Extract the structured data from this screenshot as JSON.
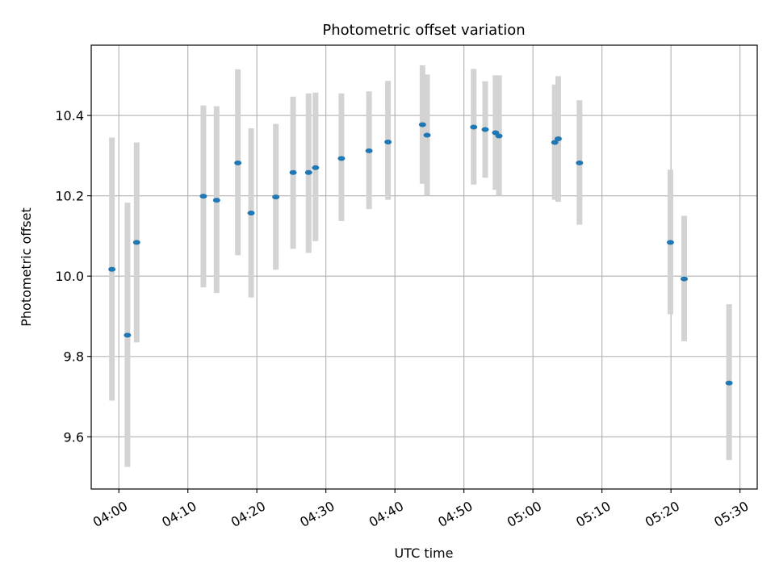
{
  "chart_data": {
    "type": "scatter",
    "title": "Photometric offset variation",
    "xlabel": "UTC time",
    "ylabel": "Photometric offset",
    "grid": true,
    "colors": {
      "point": "#1f77b4",
      "errorbar": "#d3d3d3",
      "grid": "#b0b0b0"
    },
    "xlim": [
      "03:56:00",
      "05:32:30"
    ],
    "ylim": [
      9.47,
      10.575
    ],
    "x_ticks": [
      "04:00",
      "04:10",
      "04:20",
      "04:30",
      "04:40",
      "04:50",
      "05:00",
      "05:10",
      "05:20",
      "05:30"
    ],
    "y_ticks": [
      "9.6",
      "9.8",
      "10.0",
      "10.2",
      "10.4"
    ],
    "points": [
      {
        "x": "03:59:00",
        "y": 10.017,
        "lo": 9.69,
        "hi": 10.345
      },
      {
        "x": "04:01:15",
        "y": 9.853,
        "lo": 9.525,
        "hi": 10.183
      },
      {
        "x": "04:02:35",
        "y": 10.084,
        "lo": 9.835,
        "hi": 10.333
      },
      {
        "x": "04:12:15",
        "y": 10.199,
        "lo": 9.972,
        "hi": 10.425
      },
      {
        "x": "04:14:10",
        "y": 10.189,
        "lo": 9.958,
        "hi": 10.423
      },
      {
        "x": "04:17:15",
        "y": 10.282,
        "lo": 10.052,
        "hi": 10.515
      },
      {
        "x": "04:19:10",
        "y": 10.157,
        "lo": 9.947,
        "hi": 10.368
      },
      {
        "x": "04:22:45",
        "y": 10.197,
        "lo": 10.016,
        "hi": 10.379
      },
      {
        "x": "04:25:15",
        "y": 10.258,
        "lo": 10.068,
        "hi": 10.447
      },
      {
        "x": "04:27:30",
        "y": 10.258,
        "lo": 10.058,
        "hi": 10.455
      },
      {
        "x": "04:28:30",
        "y": 10.27,
        "lo": 10.087,
        "hi": 10.457
      },
      {
        "x": "04:32:15",
        "y": 10.293,
        "lo": 10.137,
        "hi": 10.455
      },
      {
        "x": "04:36:15",
        "y": 10.312,
        "lo": 10.167,
        "hi": 10.46
      },
      {
        "x": "04:39:00",
        "y": 10.334,
        "lo": 10.19,
        "hi": 10.486
      },
      {
        "x": "04:44:00",
        "y": 10.377,
        "lo": 10.23,
        "hi": 10.525
      },
      {
        "x": "04:44:40",
        "y": 10.351,
        "lo": 10.2,
        "hi": 10.502
      },
      {
        "x": "04:51:25",
        "y": 10.371,
        "lo": 10.228,
        "hi": 10.516
      },
      {
        "x": "04:53:05",
        "y": 10.365,
        "lo": 10.245,
        "hi": 10.485
      },
      {
        "x": "04:54:35",
        "y": 10.357,
        "lo": 10.215,
        "hi": 10.5
      },
      {
        "x": "04:55:05",
        "y": 10.349,
        "lo": 10.2,
        "hi": 10.5
      },
      {
        "x": "05:03:10",
        "y": 10.333,
        "lo": 10.19,
        "hi": 10.477
      },
      {
        "x": "05:03:40",
        "y": 10.342,
        "lo": 10.185,
        "hi": 10.498
      },
      {
        "x": "05:06:45",
        "y": 10.282,
        "lo": 10.128,
        "hi": 10.438
      },
      {
        "x": "05:19:55",
        "y": 10.084,
        "lo": 9.905,
        "hi": 10.265
      },
      {
        "x": "05:21:55",
        "y": 9.993,
        "lo": 9.838,
        "hi": 10.15
      },
      {
        "x": "05:28:25",
        "y": 9.734,
        "lo": 9.542,
        "hi": 9.93
      }
    ]
  }
}
